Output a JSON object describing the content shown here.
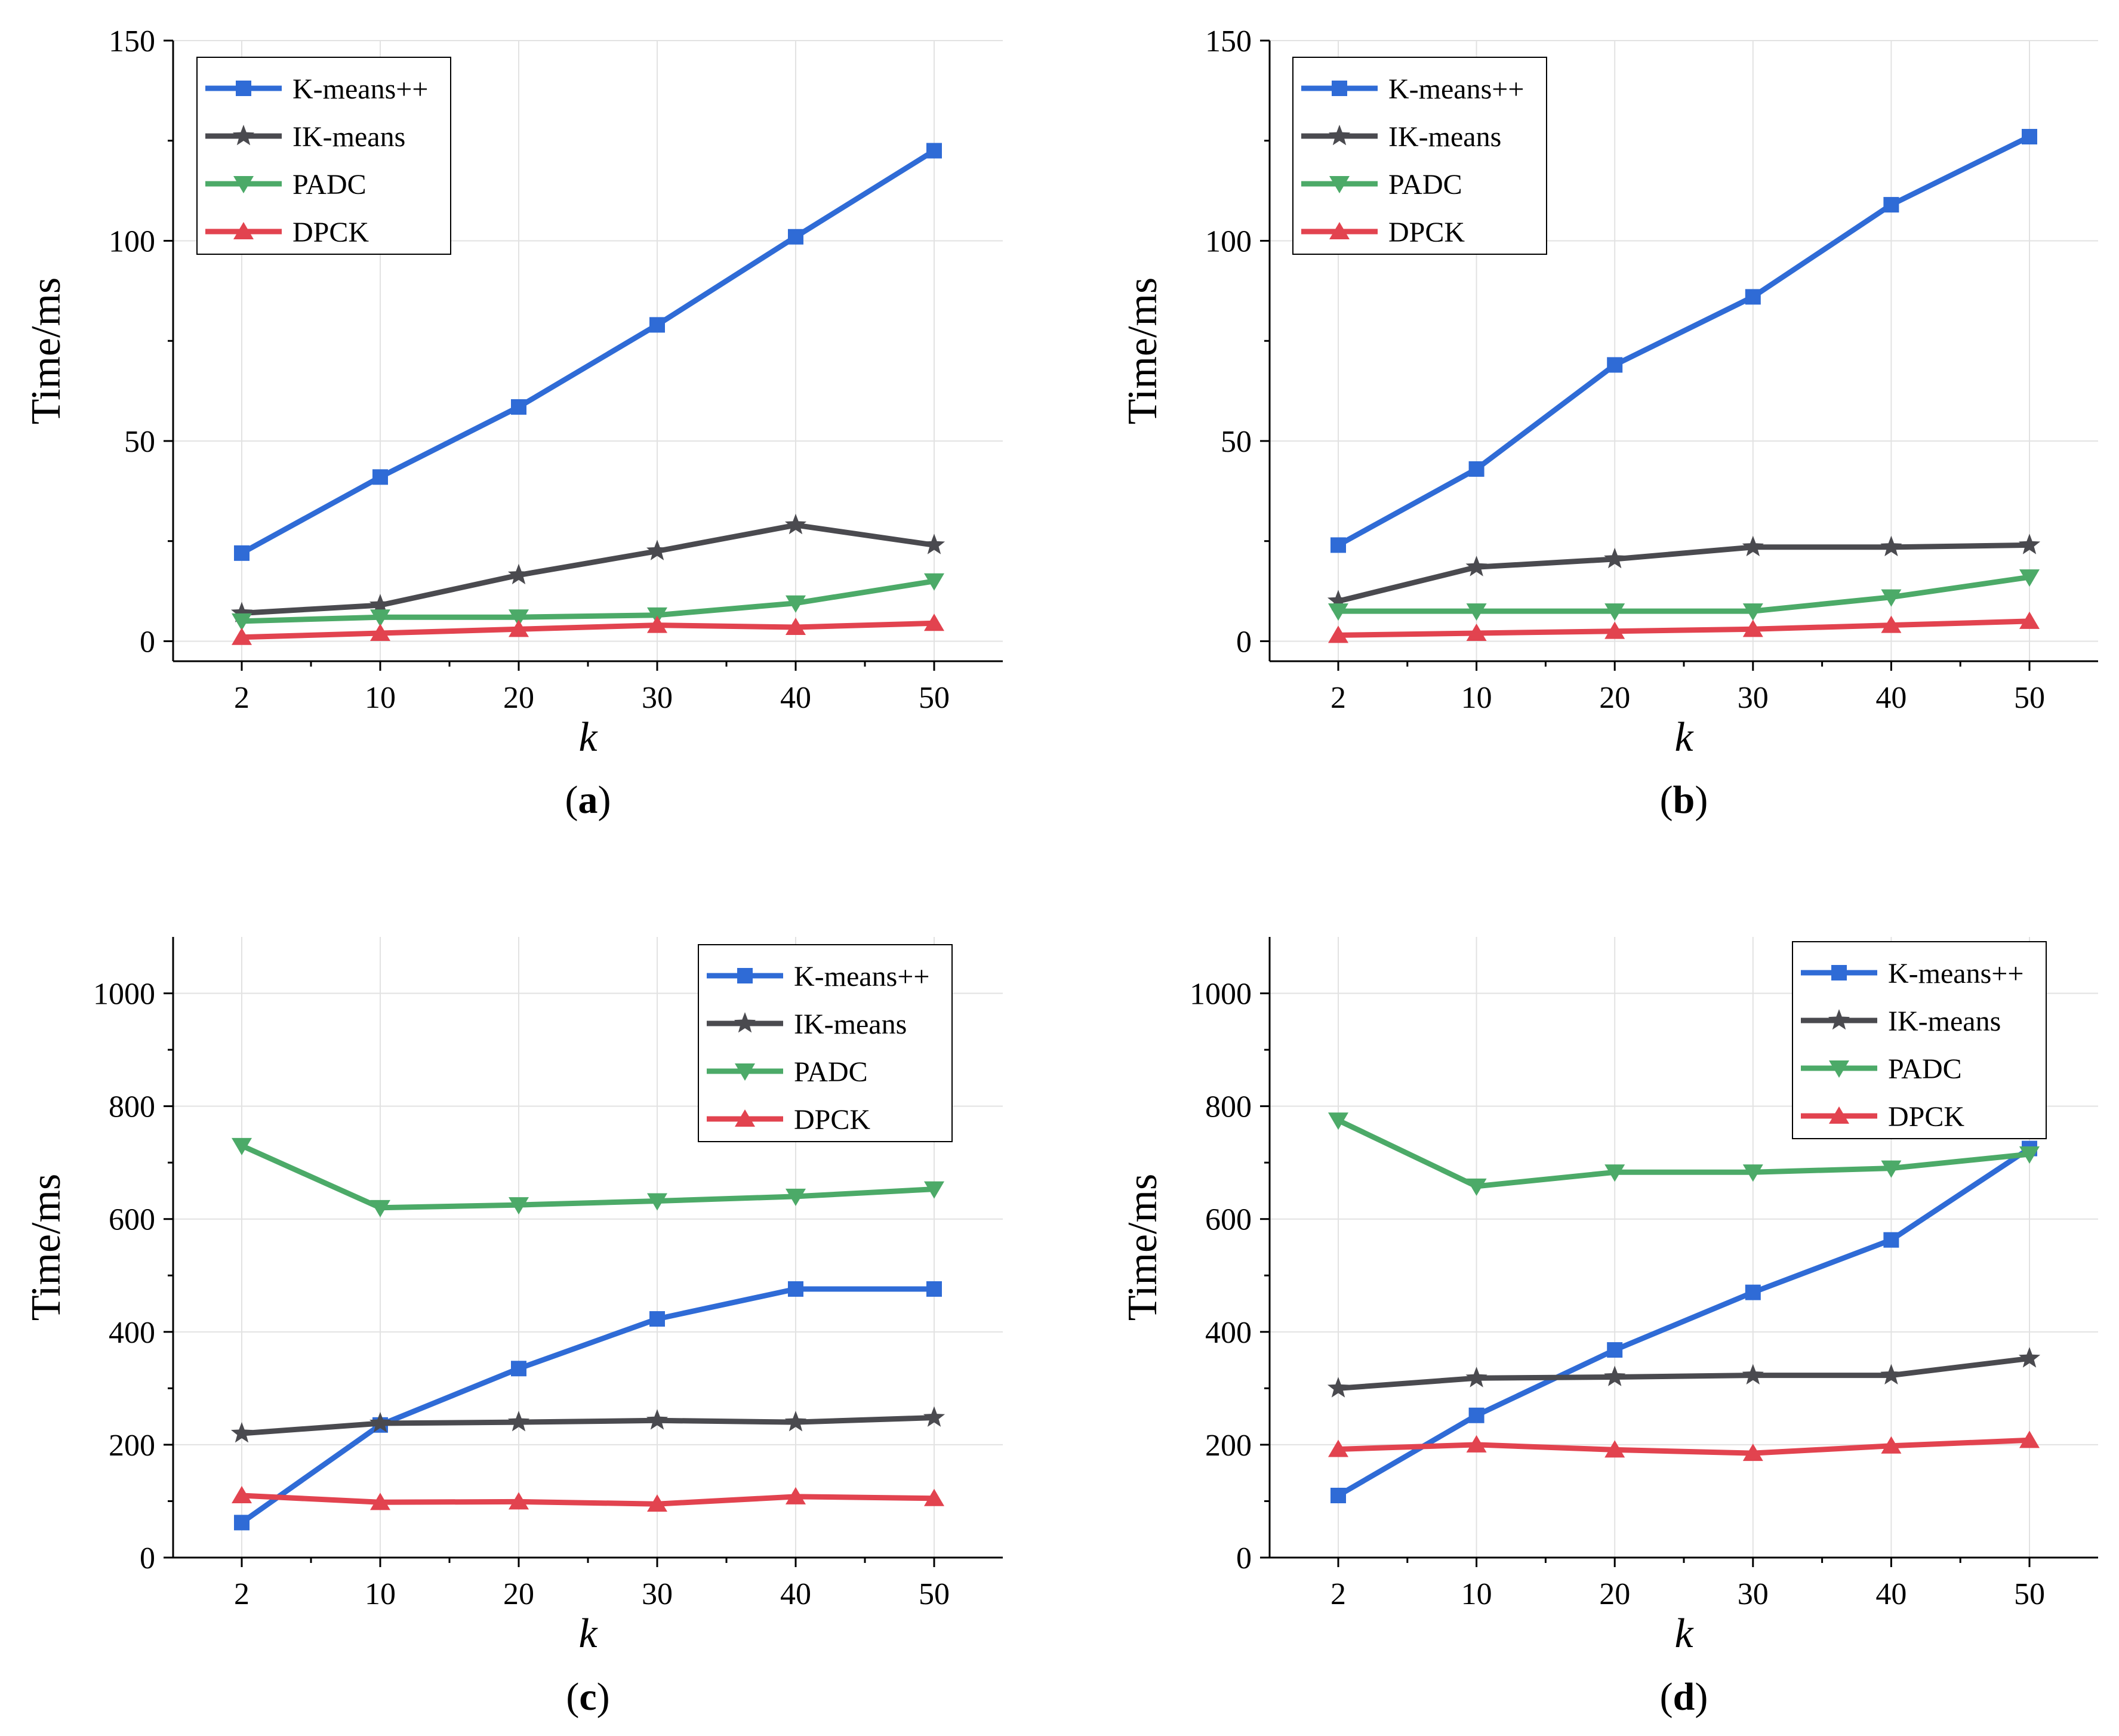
{
  "legend_entries": [
    "K-means++",
    "IK-means",
    "PADC",
    "DPCK"
  ],
  "series_styles": [
    {
      "name": "K-means++",
      "color": "#2f6bd6",
      "marker": "square"
    },
    {
      "name": "IK-means",
      "color": "#4a4a4f",
      "marker": "star"
    },
    {
      "name": "PADC",
      "color": "#4caa68",
      "marker": "triangle-down"
    },
    {
      "name": "DPCK",
      "color": "#e2434f",
      "marker": "triangle-up"
    }
  ],
  "chart_data": [
    {
      "type": "line",
      "panel_label": "a",
      "xlabel": "k",
      "ylabel": "Time/ms",
      "categories": [
        "2",
        "10",
        "20",
        "30",
        "40",
        "50"
      ],
      "ylim": [
        -5,
        150
      ],
      "yticks": [
        0,
        50,
        100,
        150
      ],
      "grid": true,
      "legend_position": "top-left",
      "series": [
        {
          "name": "K-means++",
          "values": [
            22,
            41,
            58.5,
            79,
            101,
            122.5
          ]
        },
        {
          "name": "IK-means",
          "values": [
            7,
            9,
            16.5,
            22.5,
            29,
            24
          ]
        },
        {
          "name": "PADC",
          "values": [
            5,
            6,
            6,
            6.5,
            9.5,
            15
          ]
        },
        {
          "name": "DPCK",
          "values": [
            1,
            2,
            3,
            4,
            3.5,
            4.5
          ]
        }
      ]
    },
    {
      "type": "line",
      "panel_label": "b",
      "xlabel": "k",
      "ylabel": "Time/ms",
      "categories": [
        "2",
        "10",
        "20",
        "30",
        "40",
        "50"
      ],
      "ylim": [
        -5,
        150
      ],
      "yticks": [
        0,
        50,
        100,
        150
      ],
      "grid": true,
      "legend_position": "top-left",
      "series": [
        {
          "name": "K-means++",
          "values": [
            24,
            43,
            69,
            86,
            109,
            126
          ]
        },
        {
          "name": "IK-means",
          "values": [
            10,
            18.5,
            20.5,
            23.5,
            23.5,
            24
          ]
        },
        {
          "name": "PADC",
          "values": [
            7.5,
            7.5,
            7.5,
            7.5,
            11,
            16
          ]
        },
        {
          "name": "DPCK",
          "values": [
            1.5,
            2,
            2.5,
            3,
            4,
            5
          ]
        }
      ]
    },
    {
      "type": "line",
      "panel_label": "c",
      "xlabel": "k",
      "ylabel": "Time/ms",
      "categories": [
        "2",
        "10",
        "20",
        "30",
        "40",
        "50"
      ],
      "ylim": [
        0,
        1100
      ],
      "yticks": [
        0,
        200,
        400,
        600,
        800,
        1000
      ],
      "grid": true,
      "legend_position": "top-right",
      "series": [
        {
          "name": "K-means++",
          "values": [
            62,
            235,
            335,
            423,
            476,
            476
          ]
        },
        {
          "name": "IK-means",
          "values": [
            220,
            238,
            240,
            243,
            240,
            248
          ]
        },
        {
          "name": "PADC",
          "values": [
            730,
            620,
            625,
            632,
            640,
            653
          ]
        },
        {
          "name": "DPCK",
          "values": [
            110,
            98,
            99,
            95,
            108,
            105
          ]
        }
      ]
    },
    {
      "type": "line",
      "panel_label": "d",
      "xlabel": "k",
      "ylabel": "Time/ms",
      "categories": [
        "2",
        "10",
        "20",
        "30",
        "40",
        "50"
      ],
      "ylim": [
        0,
        1100
      ],
      "yticks": [
        0,
        200,
        400,
        600,
        800,
        1000
      ],
      "grid": true,
      "legend_position": "top-right",
      "series": [
        {
          "name": "K-means++",
          "values": [
            110,
            252,
            368,
            470,
            563,
            725
          ]
        },
        {
          "name": "IK-means",
          "values": [
            300,
            318,
            320,
            323,
            323,
            353
          ]
        },
        {
          "name": "PADC",
          "values": [
            775,
            658,
            683,
            683,
            690,
            715
          ]
        },
        {
          "name": "DPCK",
          "values": [
            192,
            200,
            191,
            185,
            198,
            208
          ]
        }
      ]
    }
  ]
}
